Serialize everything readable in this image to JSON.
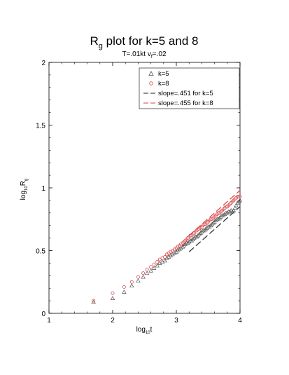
{
  "chart_data": {
    "type": "scatter",
    "title_main": "R",
    "title_sub": "g",
    "title_rest": " plot for k=5 and 8",
    "subtitle_a": "T=.01kt v",
    "subtitle_sub": "f",
    "subtitle_b": "=.02",
    "xlabel_main": "log",
    "xlabel_sub": "10",
    "xlabel_rest": "t",
    "ylabel_main": "log",
    "ylabel_sub": "10",
    "ylabel_r": "R",
    "ylabel_rsub": "g",
    "xlim": [
      1,
      4
    ],
    "ylim": [
      0,
      2
    ],
    "x_ticks": [
      1,
      2,
      3,
      4
    ],
    "y_ticks": [
      0,
      0.5,
      1,
      1.5,
      2
    ],
    "x_tick_labels": [
      "1",
      "2",
      "3",
      "4"
    ],
    "y_tick_labels": [
      "0",
      "0.5",
      "1",
      "1.5",
      "2"
    ],
    "grid": false,
    "legend_position": "top-right",
    "series": [
      {
        "name": "k=5",
        "marker": "triangle",
        "color": "#555555",
        "x": [
          1.7,
          2.0,
          2.18,
          2.3,
          2.4,
          2.48,
          2.54,
          2.6,
          2.65,
          2.7,
          2.74,
          2.78,
          2.82,
          2.85,
          2.88,
          2.91,
          2.94,
          2.97,
          3.0,
          3.02,
          3.05,
          3.07,
          3.1,
          3.12,
          3.14,
          3.16,
          3.18,
          3.2,
          3.22,
          3.24,
          3.26,
          3.28,
          3.3,
          3.32,
          3.34,
          3.36,
          3.38,
          3.4,
          3.42,
          3.44,
          3.46,
          3.48,
          3.5,
          3.52,
          3.54,
          3.56,
          3.58,
          3.6,
          3.62,
          3.64,
          3.66,
          3.68,
          3.7,
          3.72,
          3.74,
          3.76,
          3.78,
          3.8,
          3.82,
          3.84,
          3.86,
          3.88,
          3.9,
          3.92,
          3.94,
          3.96,
          3.98,
          4.0
        ],
        "y": [
          0.09,
          0.12,
          0.17,
          0.22,
          0.26,
          0.29,
          0.32,
          0.34,
          0.36,
          0.38,
          0.4,
          0.41,
          0.42,
          0.44,
          0.45,
          0.46,
          0.47,
          0.48,
          0.49,
          0.5,
          0.51,
          0.52,
          0.53,
          0.54,
          0.55,
          0.56,
          0.56,
          0.57,
          0.58,
          0.58,
          0.59,
          0.6,
          0.61,
          0.61,
          0.62,
          0.63,
          0.64,
          0.65,
          0.66,
          0.66,
          0.67,
          0.68,
          0.69,
          0.69,
          0.7,
          0.71,
          0.72,
          0.73,
          0.74,
          0.75,
          0.75,
          0.76,
          0.77,
          0.78,
          0.78,
          0.79,
          0.8,
          0.8,
          0.81,
          0.81,
          0.82,
          0.81,
          0.82,
          0.84,
          0.86,
          0.88,
          0.89,
          0.9
        ]
      },
      {
        "name": "k=8",
        "marker": "circle",
        "color": "#d94040",
        "x": [
          1.7,
          2.0,
          2.18,
          2.3,
          2.4,
          2.48,
          2.54,
          2.6,
          2.65,
          2.7,
          2.74,
          2.78,
          2.82,
          2.85,
          2.88,
          2.91,
          2.94,
          2.97,
          3.0,
          3.02,
          3.05,
          3.07,
          3.1,
          3.12,
          3.14,
          3.16,
          3.18,
          3.2,
          3.22,
          3.24,
          3.26,
          3.28,
          3.3,
          3.32,
          3.34,
          3.36,
          3.38,
          3.4,
          3.42,
          3.44,
          3.46,
          3.48,
          3.5,
          3.52,
          3.54,
          3.56,
          3.58,
          3.6,
          3.62,
          3.64,
          3.66,
          3.68,
          3.7,
          3.72,
          3.74,
          3.76,
          3.78,
          3.8,
          3.82,
          3.84,
          3.86,
          3.88,
          3.9,
          3.92,
          3.94,
          3.96,
          3.98,
          4.0
        ],
        "y": [
          0.1,
          0.16,
          0.21,
          0.25,
          0.29,
          0.32,
          0.35,
          0.37,
          0.39,
          0.41,
          0.43,
          0.44,
          0.45,
          0.47,
          0.48,
          0.49,
          0.5,
          0.51,
          0.52,
          0.53,
          0.54,
          0.55,
          0.56,
          0.57,
          0.58,
          0.59,
          0.6,
          0.61,
          0.62,
          0.62,
          0.63,
          0.64,
          0.65,
          0.66,
          0.67,
          0.67,
          0.68,
          0.69,
          0.7,
          0.71,
          0.71,
          0.72,
          0.73,
          0.74,
          0.75,
          0.75,
          0.76,
          0.77,
          0.78,
          0.79,
          0.8,
          0.8,
          0.81,
          0.82,
          0.83,
          0.84,
          0.85,
          0.85,
          0.86,
          0.87,
          0.88,
          0.89,
          0.9,
          0.91,
          0.92,
          0.93,
          0.93,
          0.93
        ]
      }
    ],
    "fit_lines": [
      {
        "name": "slope=.451 for k=5",
        "color": "#222222",
        "dash": "long",
        "x": [
          3.2,
          4.0
        ],
        "y": [
          0.49,
          0.85
        ]
      },
      {
        "name": "slope=.455 for k=8",
        "color": "#d94040",
        "dash": "long",
        "x": [
          3.2,
          4.0
        ],
        "y": [
          0.62,
          0.98
        ]
      }
    ]
  }
}
